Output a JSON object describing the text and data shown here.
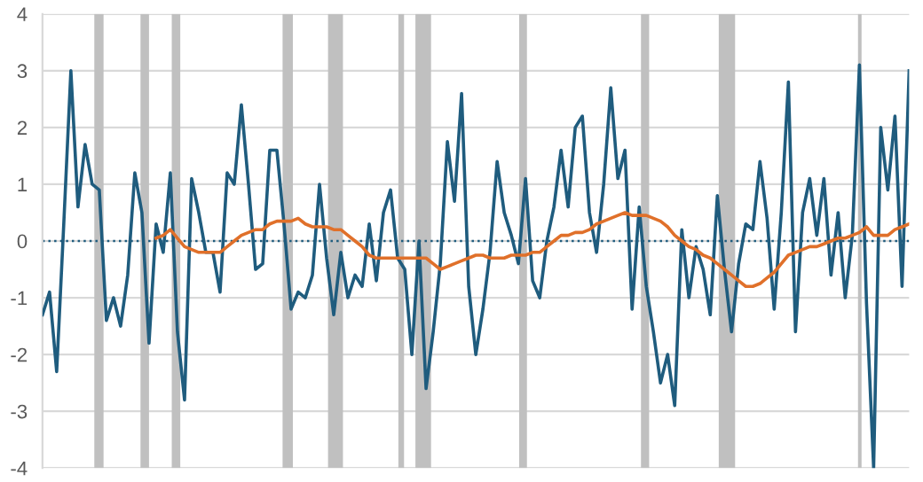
{
  "chart_data": {
    "type": "line",
    "categories": [
      null,
      null,
      null,
      null,
      null,
      null,
      null,
      null,
      null,
      null,
      null,
      null,
      null,
      null,
      null,
      null,
      null,
      null,
      null,
      null,
      null,
      null,
      null,
      null,
      null,
      null,
      null,
      null,
      null,
      null,
      null,
      null,
      null,
      null,
      null,
      null,
      null,
      null,
      null,
      null,
      null,
      null,
      null,
      null,
      null,
      null,
      null,
      null,
      null,
      null,
      null,
      null,
      null,
      null,
      null,
      null,
      null,
      null,
      null,
      null,
      null,
      null,
      null,
      null,
      null,
      null,
      null,
      null,
      null,
      null,
      null,
      null,
      null,
      null,
      null,
      null,
      null,
      null,
      null,
      null,
      null,
      null,
      null,
      null,
      null,
      null,
      null,
      null,
      null,
      null,
      null,
      null,
      null,
      null,
      null,
      null,
      null,
      null,
      null,
      null,
      null,
      null,
      null,
      null,
      null,
      null,
      null,
      null,
      null,
      null,
      null,
      null,
      null,
      null,
      null,
      null,
      null,
      null,
      null,
      null,
      null,
      null,
      null
    ],
    "series": [
      {
        "color": "#1f5c7e",
        "values": [
          -1.3,
          -0.9,
          -2.3,
          0.3,
          3.0,
          0.6,
          1.7,
          1.0,
          0.9,
          -1.4,
          -1.0,
          -1.5,
          -0.6,
          1.2,
          0.5,
          -1.8,
          0.3,
          -0.2,
          1.2,
          -1.6,
          -2.8,
          1.1,
          0.5,
          -0.2,
          -0.2,
          -0.9,
          1.2,
          1.0,
          2.4,
          1.0,
          -0.5,
          -0.4,
          1.6,
          1.6,
          0.3,
          -1.2,
          -0.9,
          -1.0,
          -0.6,
          1.0,
          -0.3,
          -1.3,
          -0.2,
          -1.0,
          -0.6,
          -0.8,
          0.3,
          -0.7,
          0.5,
          0.9,
          -0.3,
          -0.5,
          -2.0,
          0.0,
          -2.6,
          -1.6,
          -0.4,
          1.75,
          0.7,
          2.6,
          -0.8,
          -2.0,
          -1.2,
          -0.2,
          1.4,
          0.5,
          0.1,
          -0.4,
          1.1,
          -0.7,
          -1.0,
          0.0,
          0.6,
          1.6,
          0.6,
          2.0,
          2.2,
          0.5,
          -0.2,
          1.0,
          2.7,
          1.1,
          1.6,
          -1.2,
          0.6,
          -0.8,
          -1.6,
          -2.5,
          -2.0,
          -2.9,
          0.2,
          -1.0,
          -0.1,
          -0.5,
          -1.3,
          0.8,
          -0.5,
          -1.6,
          -0.4,
          0.3,
          0.2,
          1.4,
          0.4,
          -1.2,
          0.5,
          2.8,
          -1.6,
          0.5,
          1.1,
          0.1,
          1.1,
          -0.6,
          0.5,
          -1.0,
          0.1,
          3.1,
          -1.1,
          -4.0,
          2.0,
          0.9,
          2.2,
          -0.8,
          3.0
        ]
      },
      {
        "color": "#e0702a",
        "values": [
          null,
          null,
          null,
          null,
          null,
          null,
          null,
          null,
          null,
          null,
          null,
          null,
          null,
          null,
          null,
          null,
          0.05,
          0.1,
          0.2,
          0.05,
          -0.1,
          -0.15,
          -0.2,
          -0.2,
          -0.2,
          -0.2,
          -0.1,
          0.0,
          0.1,
          0.15,
          0.2,
          0.2,
          0.3,
          0.35,
          0.35,
          0.35,
          0.4,
          0.3,
          0.25,
          0.25,
          0.25,
          0.2,
          0.2,
          0.1,
          0.0,
          -0.1,
          -0.25,
          -0.3,
          -0.3,
          -0.3,
          -0.3,
          -0.3,
          -0.3,
          -0.3,
          -0.3,
          -0.4,
          -0.5,
          -0.45,
          -0.4,
          -0.35,
          -0.3,
          -0.25,
          -0.25,
          -0.3,
          -0.3,
          -0.3,
          -0.25,
          -0.25,
          -0.25,
          -0.2,
          -0.2,
          -0.1,
          0.0,
          0.1,
          0.1,
          0.15,
          0.15,
          0.2,
          0.3,
          0.35,
          0.4,
          0.45,
          0.5,
          0.45,
          0.45,
          0.45,
          0.4,
          0.35,
          0.25,
          0.1,
          0.0,
          -0.1,
          -0.15,
          -0.25,
          -0.3,
          -0.4,
          -0.5,
          -0.6,
          -0.7,
          -0.8,
          -0.8,
          -0.75,
          -0.65,
          -0.55,
          -0.4,
          -0.25,
          -0.2,
          -0.15,
          -0.1,
          -0.1,
          -0.05,
          0.0,
          0.05,
          0.05,
          0.1,
          0.15,
          0.25,
          0.1,
          0.1,
          0.1,
          0.2,
          0.25,
          0.3
        ]
      }
    ],
    "ylim": [
      -4,
      4
    ],
    "yticks": [
      -4,
      -3,
      -2,
      -1,
      0,
      1,
      2,
      3,
      4
    ],
    "grid": "y",
    "tick_labels": "y",
    "ref_lines": [
      {
        "axis": "y",
        "value": 0,
        "color": "#1f5c7e",
        "line_style": "dotted"
      }
    ]
  }
}
